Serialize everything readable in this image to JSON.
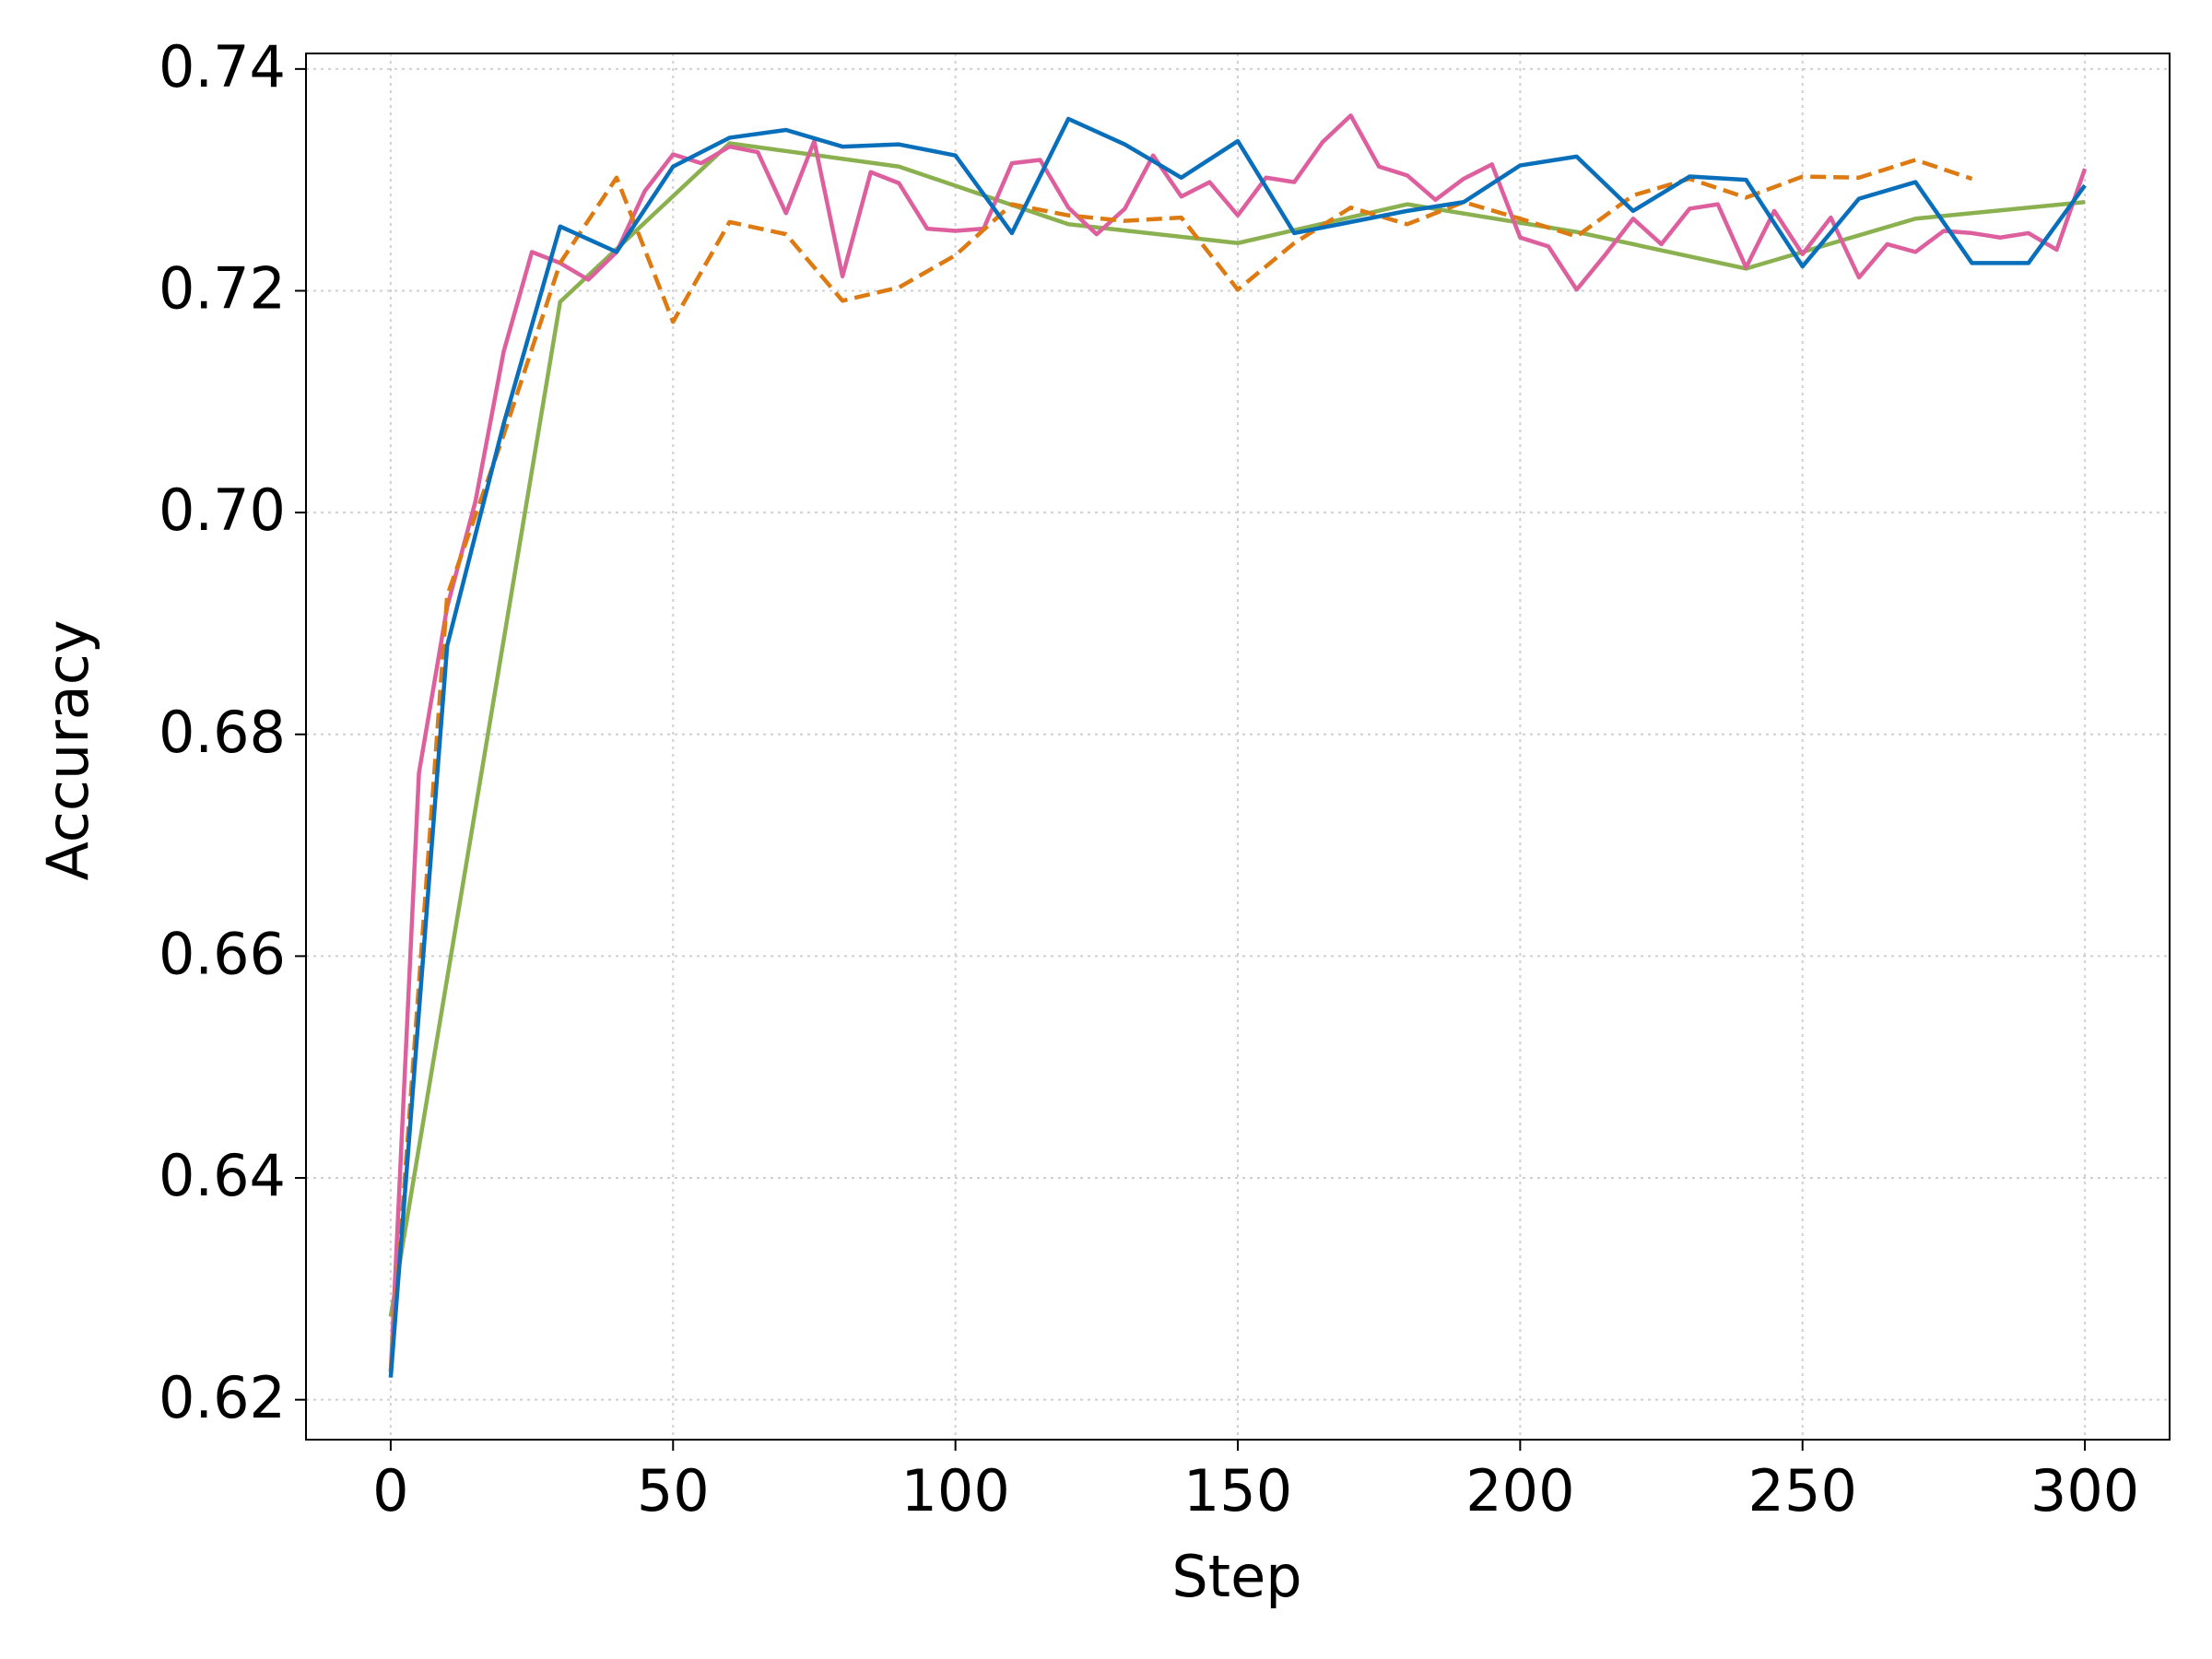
{
  "chart_data": {
    "type": "line",
    "x_label": "Step",
    "y_label": "Accuracy",
    "xlim": [
      -15,
      315
    ],
    "ylim": [
      0.6164,
      0.7414
    ],
    "xticks": [
      0,
      50,
      100,
      150,
      200,
      250,
      300
    ],
    "yticks": [
      {
        "value": 0.62,
        "label": "0.62"
      },
      {
        "value": 0.64,
        "label": "0.64"
      },
      {
        "value": 0.66,
        "label": "0.66"
      },
      {
        "value": 0.68,
        "label": "0.68"
      },
      {
        "value": 0.7,
        "label": "0.70"
      },
      {
        "value": 0.72,
        "label": "0.72"
      },
      {
        "value": 0.74,
        "label": "0.74"
      }
    ],
    "grid": true,
    "series": [
      {
        "color": "#8ab04f",
        "dash": "solid",
        "x": [
          0,
          30,
          60,
          90,
          120,
          150,
          180,
          210,
          240,
          270,
          300
        ],
        "values": [
          0.6275,
          0.719,
          0.7333,
          0.7312,
          0.726,
          0.7243,
          0.7278,
          0.7253,
          0.722,
          0.7265,
          0.728
        ]
      },
      {
        "color": "#dd5f9e",
        "dash": "solid",
        "x": [
          0,
          5,
          10,
          15,
          20,
          25,
          30,
          35,
          40,
          45,
          50,
          55,
          60,
          65,
          70,
          75,
          80,
          85,
          90,
          95,
          100,
          105,
          110,
          115,
          120,
          125,
          130,
          135,
          140,
          145,
          150,
          155,
          160,
          165,
          170,
          175,
          180,
          185,
          190,
          195,
          200,
          205,
          210,
          215,
          220,
          225,
          230,
          235,
          240,
          245,
          250,
          255,
          260,
          265,
          270,
          275,
          280,
          285,
          290,
          295,
          300
        ],
        "values": [
          0.6225,
          0.6765,
          0.6915,
          0.701,
          0.7145,
          0.7235,
          0.7225,
          0.721,
          0.7235,
          0.729,
          0.7323,
          0.7315,
          0.733,
          0.7325,
          0.727,
          0.7335,
          0.7213,
          0.7307,
          0.7297,
          0.7256,
          0.7254,
          0.7256,
          0.7315,
          0.7318,
          0.7275,
          0.7251,
          0.7274,
          0.7322,
          0.7285,
          0.7298,
          0.7268,
          0.7302,
          0.7298,
          0.7334,
          0.7358,
          0.7312,
          0.7304,
          0.7282,
          0.7301,
          0.7314,
          0.7248,
          0.724,
          0.7201,
          0.7232,
          0.7265,
          0.7242,
          0.7274,
          0.7278,
          0.7221,
          0.7272,
          0.7233,
          0.7266,
          0.7212,
          0.7242,
          0.7235,
          0.7254,
          0.7252,
          0.7248,
          0.7252,
          0.7237,
          0.731
        ]
      },
      {
        "color": "#dd7a12",
        "dash": "dashed",
        "x": [
          0,
          10,
          20,
          30,
          40,
          50,
          60,
          70,
          80,
          90,
          100,
          110,
          120,
          130,
          140,
          150,
          160,
          170,
          180,
          190,
          200,
          210,
          220,
          230,
          240,
          250,
          260,
          270,
          280
        ],
        "values": [
          0.6225,
          0.6925,
          0.707,
          0.7225,
          0.7302,
          0.7172,
          0.7262,
          0.7251,
          0.7191,
          0.7203,
          0.7232,
          0.7278,
          0.7268,
          0.7263,
          0.7266,
          0.7201,
          0.7243,
          0.7275,
          0.726,
          0.728,
          0.7265,
          0.7249,
          0.7286,
          0.7301,
          0.7284,
          0.7303,
          0.7302,
          0.7318,
          0.7301
        ]
      },
      {
        "color": "#0a6fba",
        "dash": "solid",
        "x": [
          0,
          10,
          20,
          30,
          40,
          50,
          60,
          70,
          80,
          90,
          100,
          110,
          120,
          130,
          140,
          150,
          160,
          170,
          180,
          190,
          200,
          210,
          220,
          230,
          240,
          250,
          260,
          270,
          280,
          290,
          300
        ],
        "values": [
          0.622,
          0.688,
          0.708,
          0.7258,
          0.7235,
          0.7312,
          0.7338,
          0.7345,
          0.733,
          0.7332,
          0.7322,
          0.7252,
          0.7355,
          0.7332,
          0.7302,
          0.7335,
          0.7252,
          0.7262,
          0.7272,
          0.728,
          0.7313,
          0.7321,
          0.7272,
          0.7303,
          0.73,
          0.7222,
          0.7283,
          0.7298,
          0.7225,
          0.7225,
          0.7295
        ]
      }
    ]
  }
}
